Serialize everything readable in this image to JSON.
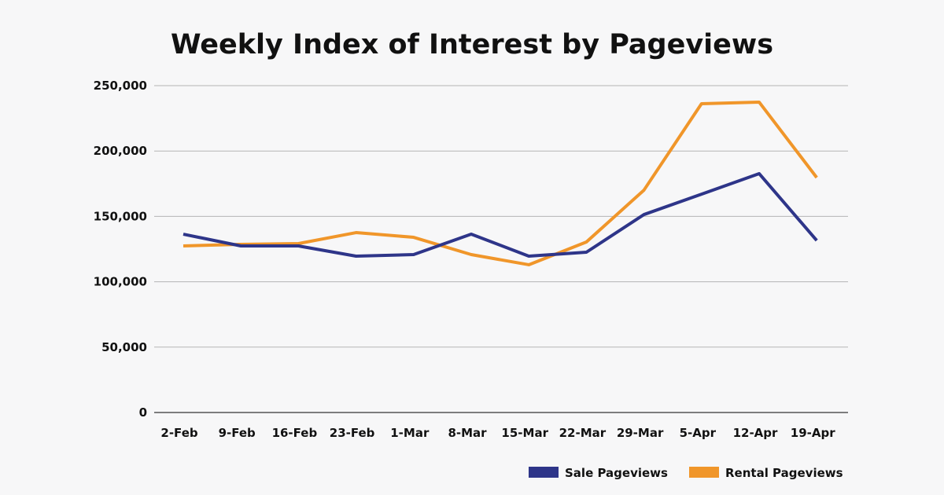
{
  "chart_data": {
    "type": "line",
    "title": "Weekly Index of Interest by Pageviews",
    "xlabel": "",
    "ylabel": "",
    "categories": [
      "2-Feb",
      "9-Feb",
      "16-Feb",
      "23-Feb",
      "1-Mar",
      "8-Mar",
      "15-Mar",
      "22-Mar",
      "29-Mar",
      "5-Apr",
      "12-Apr",
      "19-Apr"
    ],
    "ylim": [
      0,
      250000
    ],
    "yticks": [
      0,
      50000,
      100000,
      150000,
      200000,
      250000
    ],
    "ytick_labels": [
      "0",
      "50,000",
      "100,000",
      "150,000",
      "200,000",
      "250,000"
    ],
    "grid": true,
    "legend_position": "bottom-right",
    "series": [
      {
        "name": "Sale Pageviews",
        "color": "#2e3589",
        "values": [
          136400,
          127400,
          127400,
          119600,
          120800,
          136400,
          119600,
          122600,
          151400,
          167000,
          182700,
          131600
        ]
      },
      {
        "name": "Rental Pageviews",
        "color": "#f0962a",
        "values": [
          127400,
          128600,
          129200,
          137600,
          134000,
          120800,
          113000,
          130400,
          170100,
          236200,
          237400,
          179700
        ]
      }
    ]
  }
}
